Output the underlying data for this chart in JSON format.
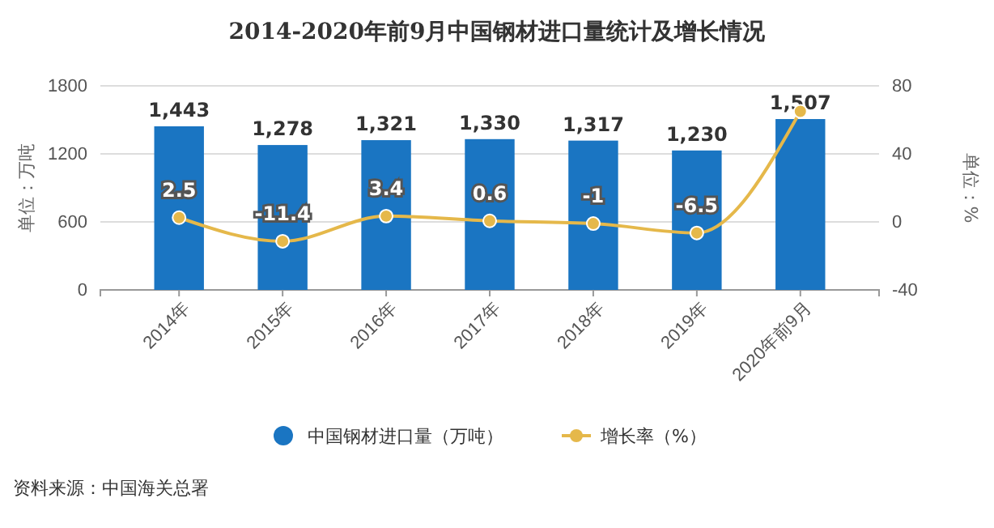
{
  "chart_data": {
    "type": "bar",
    "title": "2014-2020年前9月中国钢材进口量统计及增长情况",
    "categories": [
      "2014年",
      "2015年",
      "2016年",
      "2017年",
      "2018年",
      "2019年",
      "2020年前9月"
    ],
    "series": [
      {
        "name": "中国钢材进口量（万吨）",
        "color": "#1a75c2",
        "values": [
          1443,
          1278,
          1321,
          1330,
          1317,
          1230,
          1507
        ],
        "value_labels": [
          "1,443",
          "1,278",
          "1,321",
          "1,330",
          "1,317",
          "1,230",
          "1,507"
        ]
      },
      {
        "name": "增长率（%）",
        "type": "line",
        "axis": "y2",
        "color": "#e5b84a",
        "values": [
          2.5,
          -11.4,
          3.4,
          0.6,
          -1,
          -6.5,
          65
        ],
        "value_labels": [
          "2.5",
          "-11.4",
          "3.4",
          "0.6",
          "-1",
          "-6.5",
          null
        ]
      }
    ],
    "ylabel": "单位：万吨",
    "y2label": "单位：%",
    "ylim": [
      0,
      1800
    ],
    "yticks": [
      0,
      600,
      1200,
      1800
    ],
    "y2lim": [
      -40,
      80
    ],
    "y2ticks": [
      -40,
      0,
      40,
      80
    ],
    "grid": "y",
    "legend": "bottom",
    "marker": "circle",
    "annotations": [
      "资料来源：中国海关总署"
    ]
  }
}
